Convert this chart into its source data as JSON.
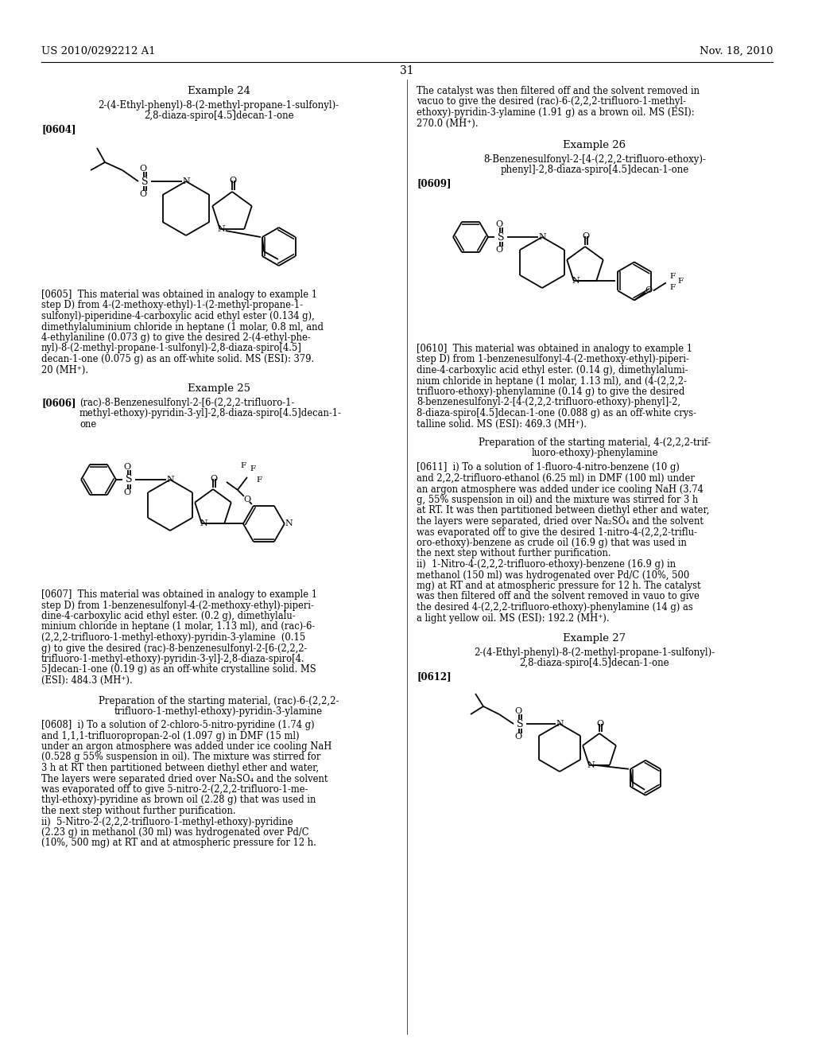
{
  "background_color": "#ffffff",
  "page_number": "31",
  "left_header": "US 2010/0292212 A1",
  "right_header": "Nov. 18, 2010"
}
